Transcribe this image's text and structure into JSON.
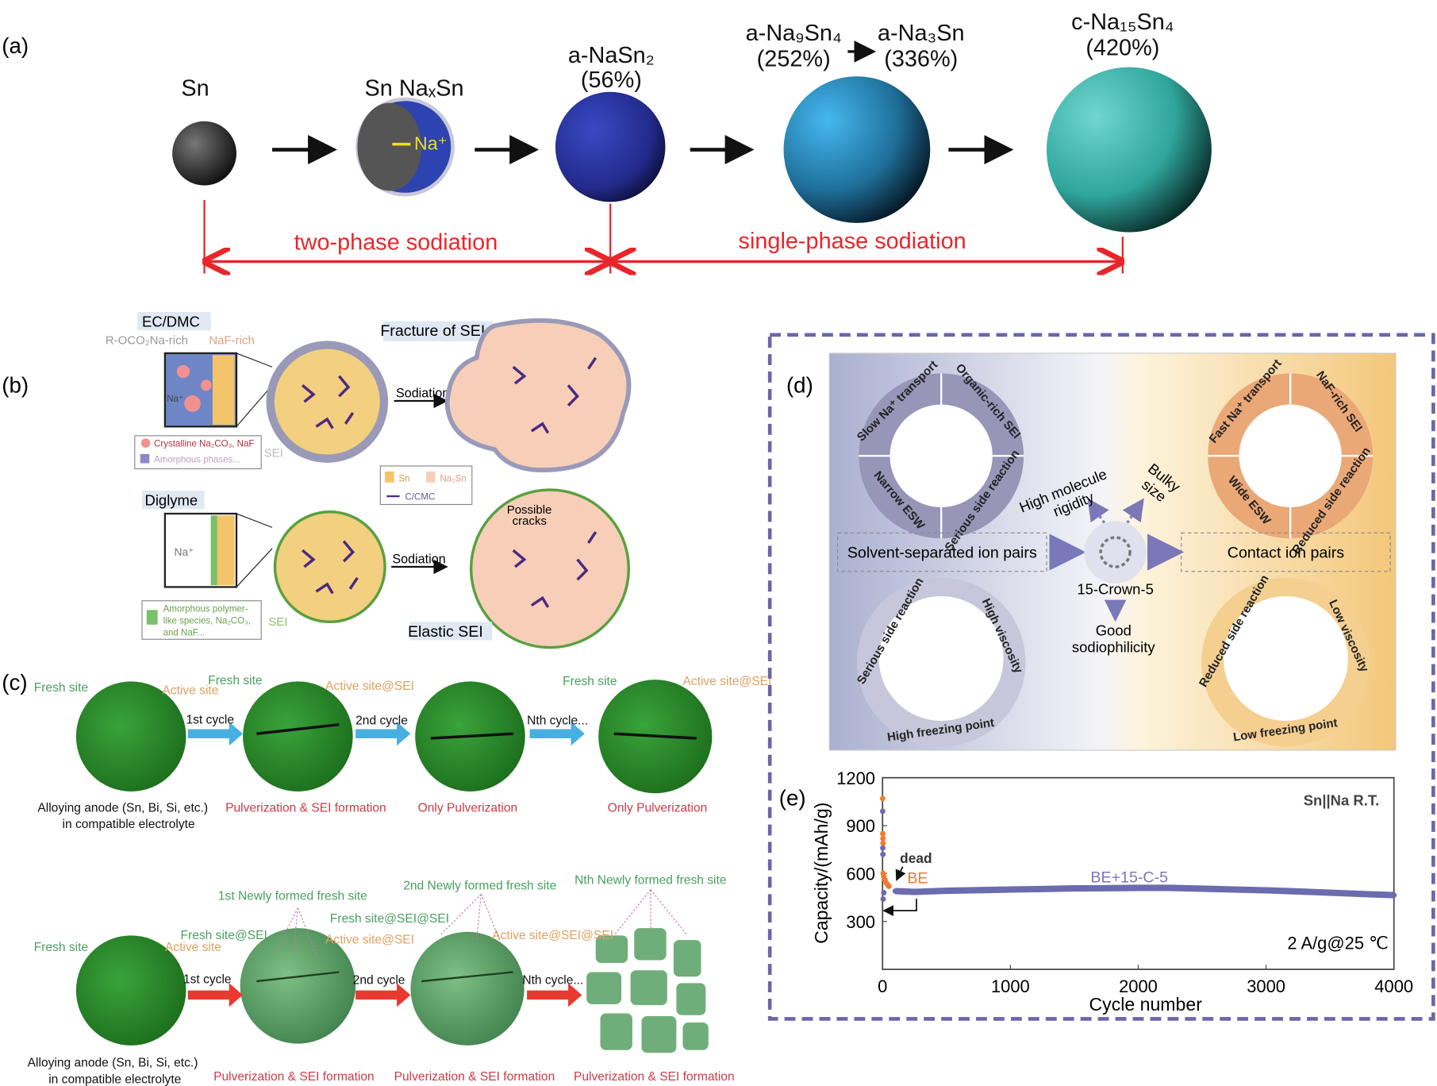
{
  "panel_a": {
    "label": "(a)",
    "stages": [
      {
        "name": "Sn",
        "pct": ""
      },
      {
        "name": "Sn NaₓSn",
        "pct": ""
      },
      {
        "name": "a-NaSn₂",
        "pct": "(56%)"
      },
      {
        "name": "a-Na₉Sn₄",
        "pct": "(252%)"
      },
      {
        "name": "a-Na₃Sn",
        "pct": "(336%)"
      },
      {
        "name": "c-Na₁₅Sn₄",
        "pct": "(420%)"
      }
    ],
    "ion_label": "Na⁺",
    "two_phase": "two-phase sodiation",
    "single_phase": "single-phase sodiation",
    "colors": {
      "red": "#e8262a",
      "sn": "#333333",
      "nasn2": "#2a2f9c",
      "na9sn4": "#2b8fc9",
      "na15sn4": "#3bbfb3"
    }
  },
  "panel_b": {
    "label": "(b)",
    "ecdmc": "EC/DMC",
    "rich_left": "R-OCO₂Na-rich",
    "rich_right": "NaF-rich",
    "na": "Na⁺",
    "legend1": [
      "Crystalline Na₂CO₃, NaF",
      "Amorphous phases..."
    ],
    "sei": "SEI",
    "sodiation": "Sodiation",
    "fracture": "Fracture of SEI",
    "legend2": [
      "Sn",
      "Na₂Sn",
      "C/CMC"
    ],
    "diglyme": "Diglyme",
    "legend3": [
      "Amorphous polymer-",
      "like species, Na₂CO₃,",
      "and NaF..."
    ],
    "possible": "Possible",
    "cracks": "cracks",
    "elastic": "Elastic SEI"
  },
  "panel_c": {
    "label": "(c)",
    "top": {
      "fresh1": "Fresh site",
      "active1": "Active site",
      "fresh2": "Fresh site",
      "active2": "Active site@SEI",
      "fresh4": "Fresh site",
      "active4": "Active site@SEI",
      "cycles": [
        "1st cycle",
        "2nd cycle",
        "Nth cycle..."
      ],
      "cap0a": "Alloying anode (Sn, Bi, Si, etc.)",
      "cap0b": "in compatible electrolyte",
      "captions": [
        "Pulverization & SEI formation",
        "Only Pulverization",
        "Only Pulverization"
      ]
    },
    "bottom": {
      "fresh1": "Fresh site",
      "active1": "Active site",
      "fresh2": "Fresh site@SEI",
      "active2": "Active site@SEI",
      "fresh3": "Fresh site@SEI@SEI",
      "active3": "Active site@SEI@SEI",
      "new1": "1st Newly formed fresh site",
      "new2": "2nd Newly formed fresh site",
      "newN": "Nth Newly formed fresh site",
      "cycles": [
        "1st cycle",
        "2nd cycle",
        "Nth cycle..."
      ],
      "cap0a": "Alloying anode (Sn, Bi, Si, etc.)",
      "cap0b": "in compatible electrolyte",
      "captions": [
        "Pulverization & SEI formation",
        "Pulverization & SEI formation",
        "Pulverization & SEI formation"
      ]
    }
  },
  "panel_d": {
    "label": "(d)",
    "tl": [
      "Slow Na⁺ transport",
      "Organic-rich SEI",
      "Narrow ESW",
      "Serious side reaction"
    ],
    "tr": [
      "Fast Na⁺ transport",
      "NaF-rich SEI",
      "Wide ESW",
      "Reduced side reaction"
    ],
    "bl": [
      "Serious side reaction",
      "High viscosity",
      "High freezing point"
    ],
    "br": [
      "Reduced side reaction",
      "Low viscosity",
      "Low freezing point"
    ],
    "left_box": "Solvent-separated ion pairs",
    "right_box": "Contact ion pairs",
    "center": "15-Crown-5",
    "rigidity1": "High molecule",
    "rigidity2": "rigidity",
    "bulky1": "Bulky",
    "bulky2": "size",
    "good1": "Good",
    "good2": "sodiophilicity"
  },
  "chart_data": {
    "type": "scatter",
    "label": "(e)",
    "xlabel": "Cycle number",
    "ylabel": "Capacity/(mAh/g)",
    "xlim": [
      0,
      4000
    ],
    "ylim": [
      0,
      1200
    ],
    "xticks": [
      "0",
      "1000",
      "2000",
      "3000",
      "4000"
    ],
    "yticks": [
      "300",
      "600",
      "900",
      "1200"
    ],
    "title": "Sn||Na   R.T.",
    "condition": "2 A/g@25 ℃",
    "annotation_dead": "dead",
    "series": [
      {
        "name": "BE",
        "color": "#f07a2e",
        "x": [
          1,
          2,
          3,
          4,
          5,
          10,
          20,
          30,
          40,
          50
        ],
        "y": [
          1070,
          850,
          820,
          790,
          600,
          580,
          560,
          540,
          530,
          520
        ]
      },
      {
        "name": "BE+15-C-5",
        "color": "#6b6bb0",
        "x": [
          1,
          2,
          3,
          5,
          10,
          100,
          250,
          500,
          750,
          1000,
          1250,
          1500,
          1750,
          2000,
          2250,
          2500,
          2750,
          3000,
          3250,
          3500,
          3750,
          4000
        ],
        "y": [
          990,
          760,
          720,
          440,
          480,
          490,
          485,
          492,
          496,
          500,
          503,
          507,
          508,
          510,
          510,
          505,
          500,
          495,
          488,
          480,
          472,
          465
        ]
      }
    ]
  }
}
